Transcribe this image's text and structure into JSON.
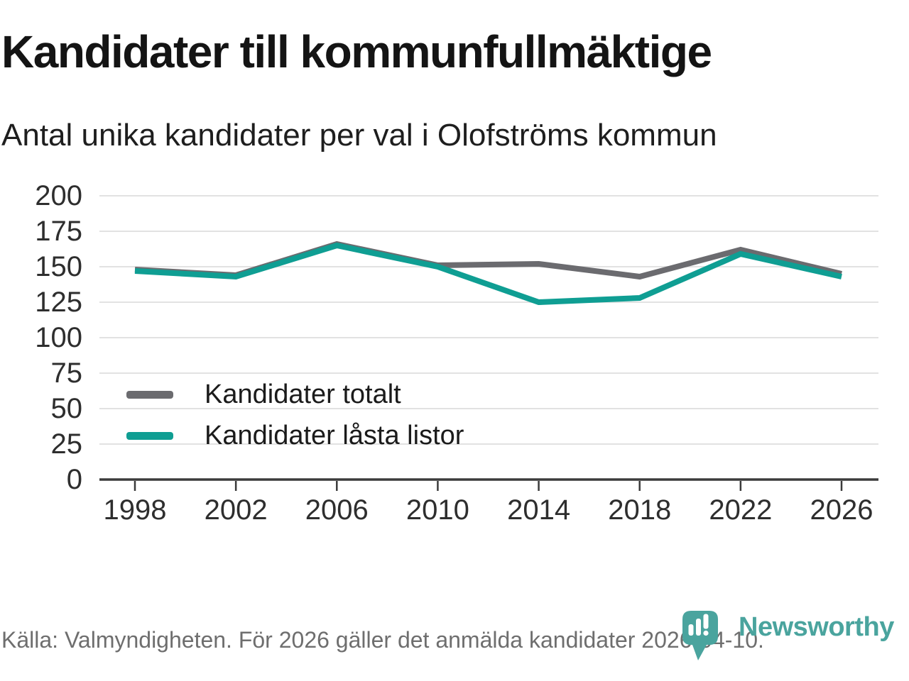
{
  "header": {
    "title": "Kandidater till kommunfullmäktige",
    "subtitle": "Antal unika kandidater per val i Olofströms kommun"
  },
  "chart_data": {
    "type": "line",
    "x": [
      1998,
      2002,
      2006,
      2010,
      2014,
      2018,
      2022,
      2026
    ],
    "series": [
      {
        "name": "Kandidater totalt",
        "color": "#6b6b6f",
        "values": [
          148,
          144,
          166,
          151,
          152,
          143,
          162,
          145
        ]
      },
      {
        "name": "Kandidater låsta listor",
        "color": "#0f9e93",
        "values": [
          147,
          143,
          165,
          150,
          125,
          128,
          159,
          143
        ]
      }
    ],
    "ylim": [
      0,
      200
    ],
    "yticks": [
      0,
      25,
      50,
      75,
      100,
      125,
      150,
      175,
      200
    ],
    "grid": true,
    "gridline_color": "#e2e2e2",
    "axis_color": "#3b3b3b",
    "tick_label_color": "#2e2e2e",
    "legend_position": "inside-left-middle"
  },
  "footer": {
    "source": "Källa: Valmyndigheten. För 2026 gäller det anmälda kandidater 2026-04-10."
  },
  "branding": {
    "logo_text": "Newsworthy",
    "logo_color": "#4aa49e",
    "logo_icon": "speech-bubble-bar-chart"
  }
}
